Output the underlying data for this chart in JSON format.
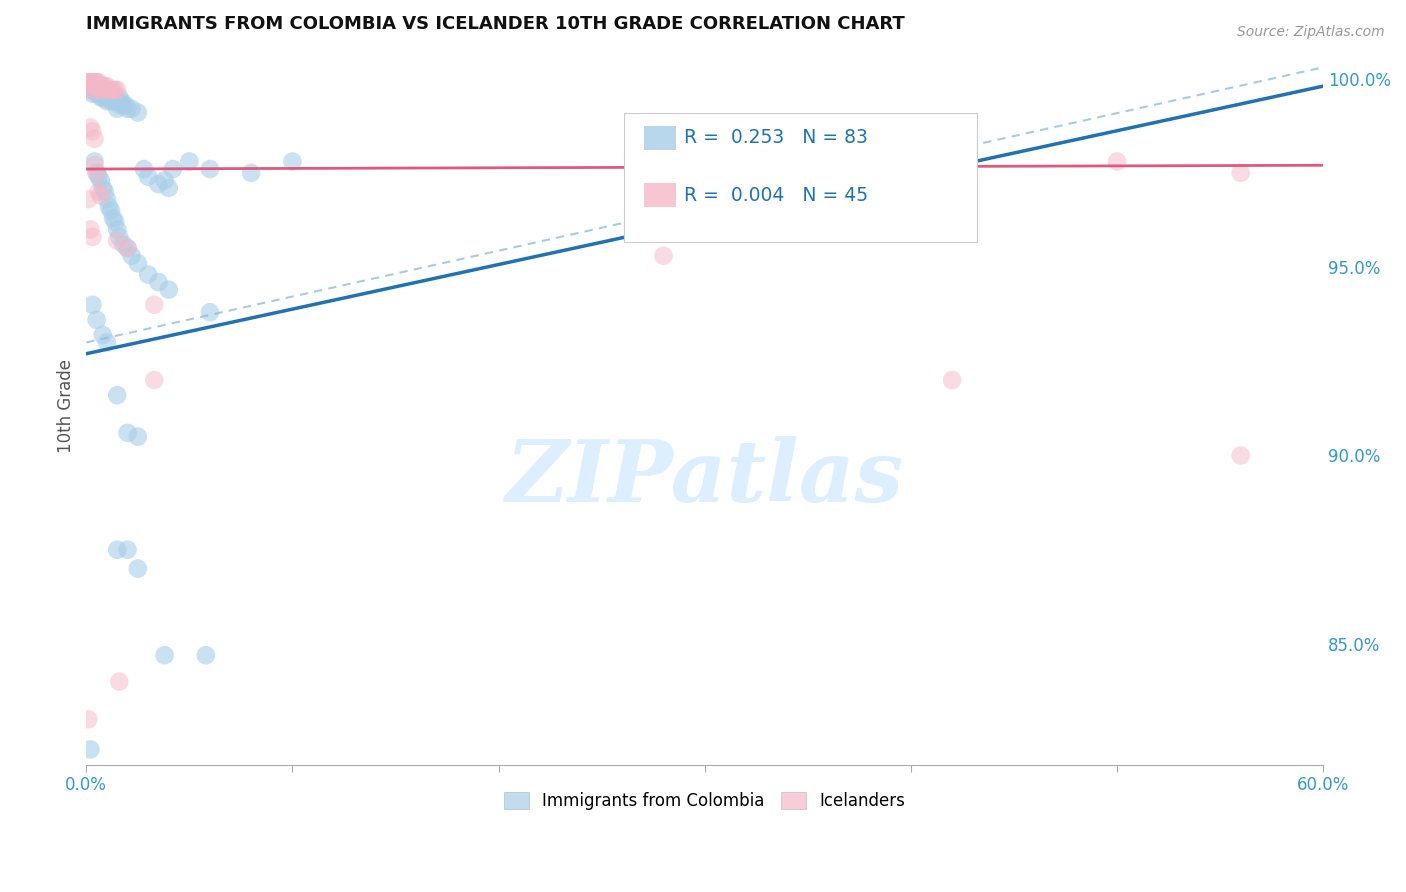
{
  "title": "IMMIGRANTS FROM COLOMBIA VS ICELANDER 10TH GRADE CORRELATION CHART",
  "source": "Source: ZipAtlas.com",
  "ylabel": "10th Grade",
  "xlim": [
    0.0,
    0.6
  ],
  "ylim": [
    0.818,
    1.008
  ],
  "yticks_right": [
    0.85,
    0.9,
    0.95,
    1.0
  ],
  "ytick_labels_right": [
    "85.0%",
    "90.0%",
    "95.0%",
    "100.0%"
  ],
  "colombia_color": "#a8cde8",
  "icelander_color": "#f4b8c8",
  "colombia_line_color": "#2171b5",
  "icelander_line_color": "#e05880",
  "dashed_line_color": "#91bfdb",
  "background_color": "#ffffff",
  "grid_color": "#d0d0d0",
  "watermark": "ZIPatlas",
  "watermark_color": "#ddeeff",
  "colombia_line": [
    0.0,
    0.927,
    0.6,
    0.998
  ],
  "icelander_line": [
    0.0,
    0.976,
    0.6,
    0.977
  ],
  "dashed_line": [
    0.0,
    0.93,
    0.6,
    1.003
  ],
  "colombia_scatter": [
    [
      0.001,
      0.999
    ],
    [
      0.002,
      0.998
    ],
    [
      0.002,
      0.997
    ],
    [
      0.003,
      0.999
    ],
    [
      0.003,
      0.998
    ],
    [
      0.003,
      0.996
    ],
    [
      0.004,
      0.999
    ],
    [
      0.004,
      0.998
    ],
    [
      0.004,
      0.997
    ],
    [
      0.005,
      0.999
    ],
    [
      0.005,
      0.998
    ],
    [
      0.005,
      0.996
    ],
    [
      0.006,
      0.998
    ],
    [
      0.006,
      0.997
    ],
    [
      0.006,
      0.996
    ],
    [
      0.007,
      0.998
    ],
    [
      0.007,
      0.997
    ],
    [
      0.007,
      0.996
    ],
    [
      0.007,
      0.995
    ],
    [
      0.008,
      0.997
    ],
    [
      0.008,
      0.996
    ],
    [
      0.008,
      0.995
    ],
    [
      0.009,
      0.997
    ],
    [
      0.009,
      0.995
    ],
    [
      0.01,
      0.997
    ],
    [
      0.01,
      0.996
    ],
    [
      0.01,
      0.994
    ],
    [
      0.011,
      0.996
    ],
    [
      0.011,
      0.995
    ],
    [
      0.012,
      0.996
    ],
    [
      0.012,
      0.994
    ],
    [
      0.013,
      0.996
    ],
    [
      0.013,
      0.994
    ],
    [
      0.014,
      0.995
    ],
    [
      0.015,
      0.994
    ],
    [
      0.015,
      0.992
    ],
    [
      0.016,
      0.995
    ],
    [
      0.016,
      0.993
    ],
    [
      0.017,
      0.994
    ],
    [
      0.018,
      0.993
    ],
    [
      0.019,
      0.993
    ],
    [
      0.02,
      0.992
    ],
    [
      0.022,
      0.992
    ],
    [
      0.025,
      0.991
    ],
    [
      0.028,
      0.976
    ],
    [
      0.03,
      0.974
    ],
    [
      0.035,
      0.972
    ],
    [
      0.038,
      0.973
    ],
    [
      0.04,
      0.971
    ],
    [
      0.042,
      0.976
    ],
    [
      0.05,
      0.978
    ],
    [
      0.06,
      0.976
    ],
    [
      0.08,
      0.975
    ],
    [
      0.1,
      0.978
    ],
    [
      0.004,
      0.978
    ],
    [
      0.005,
      0.975
    ],
    [
      0.006,
      0.974
    ],
    [
      0.007,
      0.973
    ],
    [
      0.008,
      0.971
    ],
    [
      0.009,
      0.97
    ],
    [
      0.01,
      0.968
    ],
    [
      0.011,
      0.966
    ],
    [
      0.012,
      0.965
    ],
    [
      0.013,
      0.963
    ],
    [
      0.014,
      0.962
    ],
    [
      0.015,
      0.96
    ],
    [
      0.016,
      0.958
    ],
    [
      0.018,
      0.956
    ],
    [
      0.02,
      0.955
    ],
    [
      0.022,
      0.953
    ],
    [
      0.025,
      0.951
    ],
    [
      0.03,
      0.948
    ],
    [
      0.035,
      0.946
    ],
    [
      0.04,
      0.944
    ],
    [
      0.06,
      0.938
    ],
    [
      0.003,
      0.94
    ],
    [
      0.005,
      0.936
    ],
    [
      0.008,
      0.932
    ],
    [
      0.01,
      0.93
    ],
    [
      0.015,
      0.916
    ],
    [
      0.02,
      0.906
    ],
    [
      0.025,
      0.905
    ],
    [
      0.015,
      0.875
    ],
    [
      0.02,
      0.875
    ],
    [
      0.025,
      0.87
    ],
    [
      0.038,
      0.847
    ],
    [
      0.058,
      0.847
    ],
    [
      0.002,
      0.822
    ]
  ],
  "icelander_scatter": [
    [
      0.001,
      0.999
    ],
    [
      0.002,
      0.999
    ],
    [
      0.002,
      0.998
    ],
    [
      0.003,
      0.999
    ],
    [
      0.003,
      0.998
    ],
    [
      0.003,
      0.997
    ],
    [
      0.004,
      0.999
    ],
    [
      0.004,
      0.998
    ],
    [
      0.005,
      0.999
    ],
    [
      0.005,
      0.998
    ],
    [
      0.006,
      0.999
    ],
    [
      0.006,
      0.998
    ],
    [
      0.006,
      0.997
    ],
    [
      0.007,
      0.998
    ],
    [
      0.008,
      0.998
    ],
    [
      0.008,
      0.997
    ],
    [
      0.009,
      0.998
    ],
    [
      0.01,
      0.998
    ],
    [
      0.011,
      0.997
    ],
    [
      0.012,
      0.997
    ],
    [
      0.013,
      0.997
    ],
    [
      0.014,
      0.997
    ],
    [
      0.015,
      0.997
    ],
    [
      0.002,
      0.987
    ],
    [
      0.003,
      0.986
    ],
    [
      0.004,
      0.984
    ],
    [
      0.004,
      0.977
    ],
    [
      0.005,
      0.975
    ],
    [
      0.001,
      0.968
    ],
    [
      0.006,
      0.97
    ],
    [
      0.007,
      0.969
    ],
    [
      0.002,
      0.96
    ],
    [
      0.003,
      0.958
    ],
    [
      0.015,
      0.957
    ],
    [
      0.02,
      0.955
    ],
    [
      0.28,
      0.953
    ],
    [
      0.5,
      0.978
    ],
    [
      0.033,
      0.94
    ],
    [
      0.033,
      0.92
    ],
    [
      0.42,
      0.92
    ],
    [
      0.001,
      0.83
    ],
    [
      0.016,
      0.84
    ],
    [
      0.56,
      0.9
    ],
    [
      0.56,
      0.975
    ]
  ]
}
